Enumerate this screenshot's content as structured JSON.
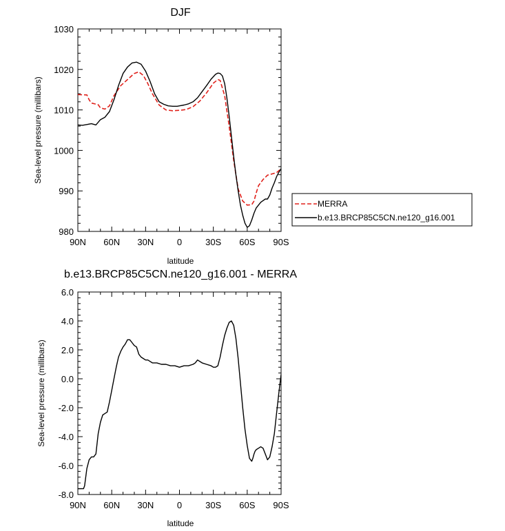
{
  "chart_data": [
    {
      "type": "line",
      "title": "DJF",
      "xlabel": "latitude",
      "ylabel": "Sea-level pressure (millibars)",
      "xlim": [
        -90,
        90
      ],
      "ylim": [
        980,
        1030
      ],
      "x_ticks": [
        "90N",
        "60N",
        "30N",
        "0",
        "30S",
        "60S",
        "90S"
      ],
      "y_ticks": [
        "980",
        "990",
        "1000",
        "1010",
        "1020",
        "1030"
      ],
      "legend_position": "right",
      "series": [
        {
          "name": "MERRA",
          "color": "#e0201a",
          "dash": "dashed",
          "x": [
            -90,
            -82,
            -80,
            -78,
            -72,
            -70,
            -66,
            -62,
            -58,
            -52,
            -46,
            -40,
            -36,
            -32,
            -28,
            -24,
            -18,
            -12,
            -6,
            0,
            6,
            12,
            18,
            24,
            30,
            34,
            36,
            40,
            44,
            48,
            52,
            56,
            60,
            64,
            66,
            68,
            70,
            74,
            78,
            82,
            86,
            90
          ],
          "y": [
            1013.8,
            1013.7,
            1012.5,
            1011.7,
            1011.3,
            1010.5,
            1010.2,
            1011,
            1013.5,
            1016,
            1017.5,
            1019,
            1019.4,
            1018.5,
            1016.5,
            1014,
            1011.2,
            1010,
            1009.8,
            1009.9,
            1010.1,
            1010.8,
            1012.2,
            1014.2,
            1016.6,
            1017.5,
            1017.3,
            1013.5,
            1006,
            997.5,
            990.5,
            987.5,
            986.5,
            986.6,
            987.5,
            989.5,
            991.3,
            992.8,
            993.9,
            994.2,
            994.5,
            995.5
          ]
        },
        {
          "name": "b.e13.BRCP85C5CN.ne120_g16.001",
          "color": "#000000",
          "dash": "solid",
          "x": [
            -90,
            -86,
            -82,
            -78,
            -74,
            -70,
            -66,
            -62,
            -58,
            -54,
            -50,
            -46,
            -42,
            -38,
            -34,
            -30,
            -26,
            -22,
            -18,
            -14,
            -10,
            -6,
            -2,
            0,
            4,
            8,
            12,
            16,
            20,
            24,
            28,
            32,
            34,
            36,
            38,
            40,
            42,
            44,
            46,
            48,
            50,
            52,
            54,
            56,
            58,
            60,
            62,
            64,
            66,
            68,
            70,
            72,
            74,
            76,
            78,
            80,
            82,
            84,
            86,
            88,
            90
          ],
          "y": [
            1006.3,
            1006.2,
            1006.4,
            1006.6,
            1006.3,
            1007.6,
            1008.2,
            1009.6,
            1012.5,
            1016,
            1019,
            1020.6,
            1021.6,
            1021.8,
            1021.3,
            1019.6,
            1017,
            1014,
            1012,
            1011.4,
            1011,
            1010.9,
            1010.9,
            1011,
            1011.2,
            1011.5,
            1012,
            1013,
            1014.5,
            1016,
            1017.6,
            1018.8,
            1019.1,
            1019,
            1018.4,
            1016.5,
            1013,
            1008.5,
            1003.5,
            998.5,
            994,
            990,
            986.5,
            984,
            982,
            981,
            981.4,
            982.8,
            984.5,
            985.8,
            986.5,
            987.2,
            987.6,
            988,
            988,
            989,
            990.7,
            992,
            993.5,
            994.6,
            995.5
          ]
        }
      ]
    },
    {
      "type": "line",
      "title": "b.e13.BRCP85C5CN.ne120_g16.001 - MERRA",
      "xlabel": "latitude",
      "ylabel": "Sea-level pressure (millibars)",
      "xlim": [
        -90,
        90
      ],
      "ylim": [
        -8,
        6
      ],
      "x_ticks": [
        "90N",
        "60N",
        "30N",
        "0",
        "30S",
        "60S",
        "90S"
      ],
      "y_ticks": [
        "-8.0",
        "-6.0",
        "-4.0",
        "-2.0",
        "0.0",
        "2.0",
        "4.0",
        "6.0"
      ],
      "series": [
        {
          "color": "#000000",
          "dash": "solid",
          "x": [
            -90,
            -87,
            -85,
            -84,
            -82,
            -80,
            -78,
            -76,
            -74,
            -72,
            -70,
            -68,
            -66,
            -64,
            -62,
            -60,
            -58,
            -56,
            -54,
            -52,
            -50,
            -48,
            -46,
            -44,
            -42,
            -40,
            -38,
            -36,
            -34,
            -32,
            -30,
            -28,
            -26,
            -24,
            -20,
            -16,
            -12,
            -8,
            -4,
            0,
            4,
            8,
            12,
            14,
            16,
            20,
            24,
            28,
            30,
            32,
            34,
            36,
            38,
            40,
            42,
            44,
            46,
            48,
            50,
            52,
            54,
            56,
            58,
            60,
            62,
            64,
            65,
            66,
            67,
            68,
            70,
            72,
            74,
            76,
            78,
            80,
            82,
            84,
            86,
            88,
            90
          ],
          "y": [
            -7.6,
            -7.6,
            -7.6,
            -7.4,
            -6.2,
            -5.6,
            -5.4,
            -5.4,
            -5.2,
            -3.8,
            -3.0,
            -2.5,
            -2.4,
            -2.3,
            -1.6,
            -0.8,
            0.0,
            0.8,
            1.5,
            1.9,
            2.2,
            2.4,
            2.7,
            2.7,
            2.5,
            2.3,
            2.2,
            1.7,
            1.5,
            1.4,
            1.3,
            1.3,
            1.2,
            1.1,
            1.1,
            1.0,
            1.0,
            0.9,
            0.9,
            0.8,
            0.9,
            0.9,
            1.0,
            1.1,
            1.3,
            1.1,
            1.0,
            0.9,
            0.8,
            0.8,
            0.9,
            1.5,
            2.3,
            3.0,
            3.5,
            3.9,
            4.0,
            3.7,
            2.8,
            1.4,
            -0.3,
            -2.0,
            -3.5,
            -4.6,
            -5.5,
            -5.7,
            -5.5,
            -5.2,
            -5.0,
            -4.9,
            -4.8,
            -4.7,
            -4.8,
            -5.2,
            -5.6,
            -5.4,
            -4.7,
            -3.8,
            -2.4,
            -1.0,
            0.3
          ]
        }
      ]
    }
  ]
}
